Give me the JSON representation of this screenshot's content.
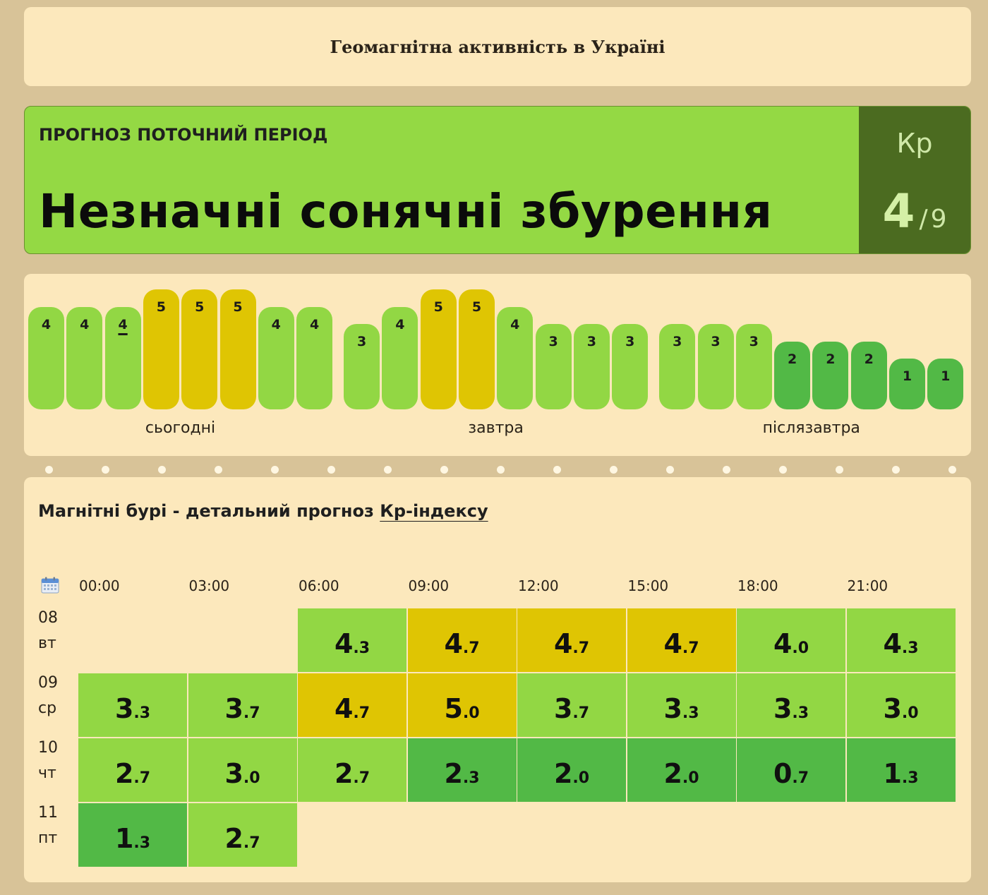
{
  "title": "Геомагнітна активність в Україні",
  "forecast": {
    "label": "ПРОГНОЗ ПОТОЧНИЙ ПЕРІОД",
    "status": "Незначні сонячні збурення",
    "kp_label": "Кр",
    "kp_value": "4",
    "kp_separator": "/",
    "kp_max": "9"
  },
  "colors": {
    "level_1_2": "#52b946",
    "level_3_4": "#92d744",
    "level_5": "#dfc503",
    "kp_box": "#4b6b20"
  },
  "bars": {
    "days": [
      {
        "label": "сьогодні",
        "values": [
          4,
          4,
          4,
          5,
          5,
          5,
          4,
          4
        ],
        "current_index": 2
      },
      {
        "label": "завтра",
        "values": [
          3,
          4,
          5,
          5,
          4,
          3,
          3,
          3
        ]
      },
      {
        "label": "післязавтра",
        "values": [
          3,
          3,
          3,
          2,
          2,
          2,
          1,
          1
        ]
      }
    ]
  },
  "detail": {
    "title_prefix": "Магнітні бурі - детальний прогноз ",
    "title_link": "Кр-індексу",
    "calendar_icon": "calendar-icon",
    "hours": [
      "00:00",
      "03:00",
      "06:00",
      "09:00",
      "12:00",
      "15:00",
      "18:00",
      "21:00"
    ],
    "rows": [
      {
        "day": "08",
        "weekday": "вт",
        "values": [
          null,
          null,
          "4.3",
          "4.7",
          "4.7",
          "4.7",
          "4.0",
          "4.3"
        ]
      },
      {
        "day": "09",
        "weekday": "ср",
        "values": [
          "3.3",
          "3.7",
          "4.7",
          "5.0",
          "3.7",
          "3.3",
          "3.3",
          "3.0"
        ]
      },
      {
        "day": "10",
        "weekday": "чт",
        "values": [
          "2.7",
          "3.0",
          "2.7",
          "2.3",
          "2.0",
          "2.0",
          "0.7",
          "1.3"
        ]
      },
      {
        "day": "11",
        "weekday": "пт",
        "values": [
          "1.3",
          "2.7",
          null,
          null,
          null,
          null,
          null,
          null
        ]
      }
    ]
  }
}
